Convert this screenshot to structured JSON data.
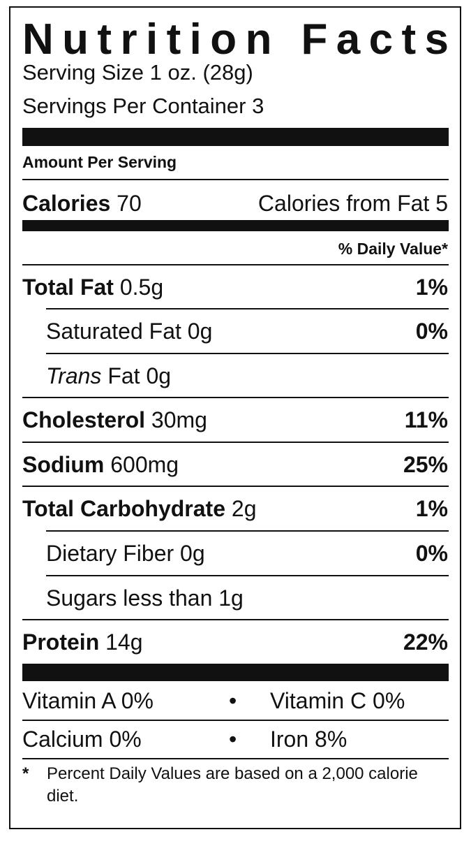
{
  "header": {
    "title": "Nutrition Facts",
    "serving_size": "Serving Size 1 oz. (28g)",
    "servings_per_container": "Servings Per Container 3"
  },
  "amount_per_serving": "Amount Per Serving",
  "calories": {
    "label": "Calories",
    "value": "70",
    "from_fat": "Calories from Fat 5"
  },
  "daily_value_header": "% Daily Value*",
  "nutrients": [
    {
      "label": "Total Fat",
      "amount": "0.5g",
      "dv": "1%",
      "sub": false
    },
    {
      "label": "Saturated Fat",
      "amount": "0g",
      "dv": "0%",
      "sub": true
    },
    {
      "label_italic": "Trans",
      "label": "Fat",
      "amount": "0g",
      "sub": true
    },
    {
      "label": "Cholesterol",
      "amount": "30mg",
      "dv": "11%",
      "sub": false
    },
    {
      "label": "Sodium",
      "amount": "600mg",
      "dv": "25%",
      "sub": false
    },
    {
      "label": "Total Carbohydrate",
      "amount": "2g",
      "dv": "1%",
      "sub": false
    },
    {
      "label": "Dietary Fiber",
      "amount": "0g",
      "dv": "0%",
      "sub": true
    },
    {
      "label": "Sugars",
      "amount": "less than 1g",
      "sub": true
    },
    {
      "label": "Protein",
      "amount": "14g",
      "dv": "22%",
      "sub": false
    }
  ],
  "vitamins": [
    [
      "Vitamin A 0%",
      "Vitamin C 0%"
    ],
    [
      "Calcium 0%",
      "Iron 8%"
    ]
  ],
  "footnote": {
    "marker": "*",
    "text": "Percent Daily Values are based on a 2,000 calorie diet."
  }
}
